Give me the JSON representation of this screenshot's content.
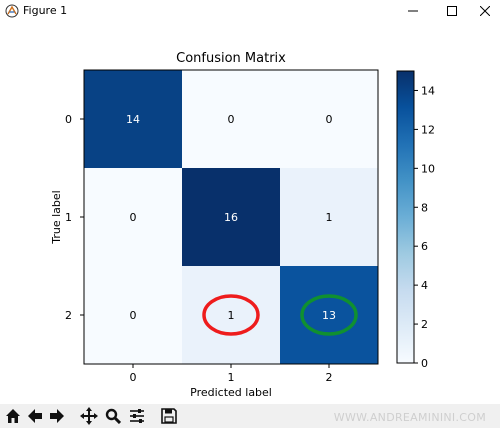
{
  "window": {
    "title": "Figure 1"
  },
  "watermark": "WWW.ANDREAMININI.COM",
  "toolbar": {
    "buttons": [
      "home-icon",
      "back-arrow-icon",
      "forward-arrow-icon",
      "pan-icon",
      "zoom-icon",
      "subplots-icon",
      "save-icon"
    ]
  },
  "chart_data": {
    "type": "heatmap",
    "title": "Confusion Matrix",
    "xlabel": "Predicted label",
    "ylabel": "True label",
    "x_categories": [
      "0",
      "1",
      "2"
    ],
    "y_categories": [
      "0",
      "1",
      "2"
    ],
    "matrix": [
      [
        14,
        0,
        0
      ],
      [
        0,
        16,
        1
      ],
      [
        0,
        1,
        13
      ]
    ],
    "colormap": "Blues",
    "colorbar": {
      "min": 0,
      "max": 15,
      "ticks": [
        0,
        2,
        4,
        6,
        8,
        10,
        12,
        14
      ]
    },
    "colors": {
      "dark": "#08306b",
      "mid": "#2171b5",
      "light": "#f7fbff"
    },
    "annotations": [
      {
        "row": 2,
        "col": 1,
        "shape": "ellipse",
        "color": "#ee1c1c"
      },
      {
        "row": 2,
        "col": 2,
        "shape": "ellipse",
        "color": "#109030"
      }
    ]
  }
}
